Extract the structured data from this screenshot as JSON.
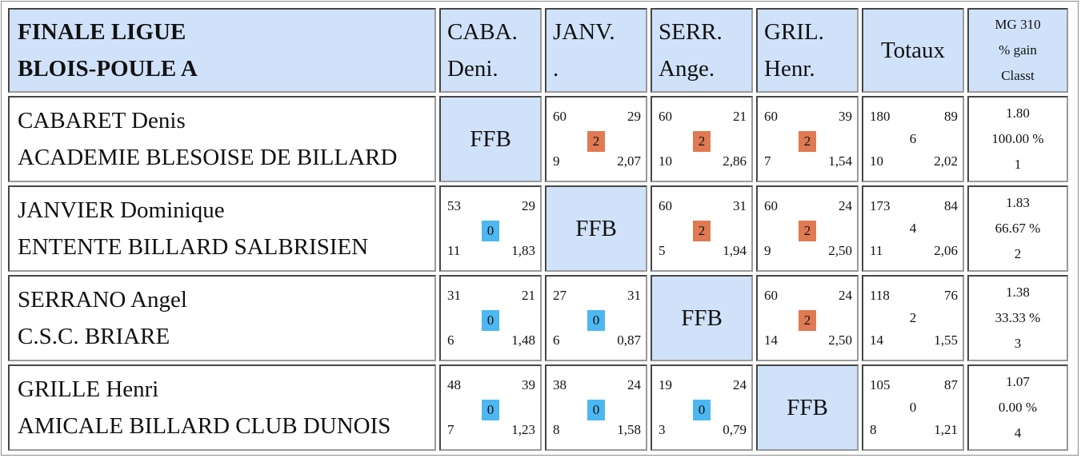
{
  "colors": {
    "header_bg": "#d0e2fa",
    "win": "#e07a52",
    "loss": "#4cb7f0"
  },
  "title": {
    "line1": "FINALE LIGUE",
    "line2": "BLOIS-POULE A"
  },
  "columns": [
    {
      "line1": "CABA.",
      "line2": "Deni."
    },
    {
      "line1": "JANV.",
      "line2": "."
    },
    {
      "line1": "SERR.",
      "line2": "Ange."
    },
    {
      "line1": "GRIL.",
      "line2": "Henr."
    }
  ],
  "totals_header": "Totaux",
  "mg_header": {
    "line1": "MG 310",
    "line2": "% gain",
    "line3": "Classt"
  },
  "ffb_label": "FFB",
  "rows": [
    {
      "name": "CABARET Denis",
      "club": "ACADEMIE BLESOISE DE BILLARD",
      "cells": [
        null,
        {
          "points": "60",
          "opp": "29",
          "score": "2",
          "result": "win",
          "reprises": "9",
          "avg": "2,07"
        },
        {
          "points": "60",
          "opp": "21",
          "score": "2",
          "result": "win",
          "reprises": "10",
          "avg": "2,86"
        },
        {
          "points": "60",
          "opp": "39",
          "score": "2",
          "result": "win",
          "reprises": "7",
          "avg": "1,54"
        }
      ],
      "totals": {
        "points": "180",
        "opp": "89",
        "score": "6",
        "reprises": "10",
        "avg": "2,02"
      },
      "mg": {
        "mg": "1.80",
        "pct": "100.00 %",
        "rank": "1"
      }
    },
    {
      "name": "JANVIER Dominique",
      "club": "ENTENTE BILLARD SALBRISIEN",
      "cells": [
        {
          "points": "53",
          "opp": "29",
          "score": "0",
          "result": "loss",
          "reprises": "11",
          "avg": "1,83"
        },
        null,
        {
          "points": "60",
          "opp": "31",
          "score": "2",
          "result": "win",
          "reprises": "5",
          "avg": "1,94"
        },
        {
          "points": "60",
          "opp": "24",
          "score": "2",
          "result": "win",
          "reprises": "9",
          "avg": "2,50"
        }
      ],
      "totals": {
        "points": "173",
        "opp": "84",
        "score": "4",
        "reprises": "11",
        "avg": "2,06"
      },
      "mg": {
        "mg": "1.83",
        "pct": "66.67 %",
        "rank": "2"
      }
    },
    {
      "name": "SERRANO Angel",
      "club": "C.S.C. BRIARE",
      "cells": [
        {
          "points": "31",
          "opp": "21",
          "score": "0",
          "result": "loss",
          "reprises": "6",
          "avg": "1,48"
        },
        {
          "points": "27",
          "opp": "31",
          "score": "0",
          "result": "loss",
          "reprises": "6",
          "avg": "0,87"
        },
        null,
        {
          "points": "60",
          "opp": "24",
          "score": "2",
          "result": "win",
          "reprises": "14",
          "avg": "2,50"
        }
      ],
      "totals": {
        "points": "118",
        "opp": "76",
        "score": "2",
        "reprises": "14",
        "avg": "1,55"
      },
      "mg": {
        "mg": "1.38",
        "pct": "33.33 %",
        "rank": "3"
      }
    },
    {
      "name": "GRILLE Henri",
      "club": "AMICALE BILLARD CLUB DUNOIS",
      "cells": [
        {
          "points": "48",
          "opp": "39",
          "score": "0",
          "result": "loss",
          "reprises": "7",
          "avg": "1,23"
        },
        {
          "points": "38",
          "opp": "24",
          "score": "0",
          "result": "loss",
          "reprises": "8",
          "avg": "1,58"
        },
        {
          "points": "19",
          "opp": "24",
          "score": "0",
          "result": "loss",
          "reprises": "3",
          "avg": "0,79"
        },
        null
      ],
      "totals": {
        "points": "105",
        "opp": "87",
        "score": "0",
        "reprises": "8",
        "avg": "1,21"
      },
      "mg": {
        "mg": "1.07",
        "pct": "0.00 %",
        "rank": "4"
      }
    }
  ]
}
